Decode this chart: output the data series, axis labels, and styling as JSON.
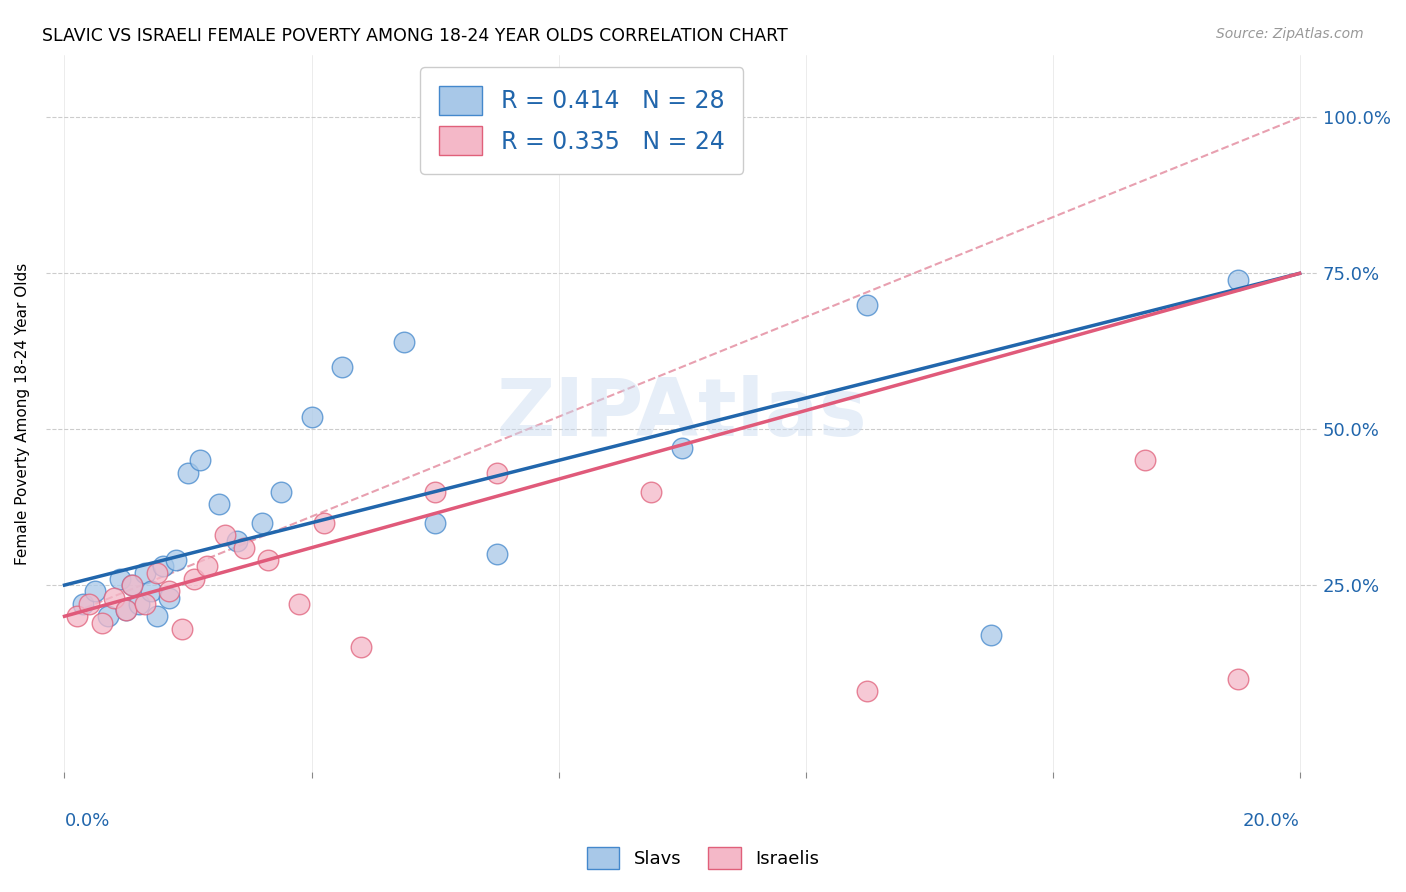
{
  "title": "SLAVIC VS ISRAELI FEMALE POVERTY AMONG 18-24 YEAR OLDS CORRELATION CHART",
  "source": "Source: ZipAtlas.com",
  "ylabel": "Female Poverty Among 18-24 Year Olds",
  "legend_text": [
    "R = 0.414   N = 28",
    "R = 0.335   N = 24"
  ],
  "slavs_color": "#a8c8e8",
  "israelis_color": "#f4b8c8",
  "slavs_edge_color": "#4488cc",
  "israelis_edge_color": "#e0607a",
  "slavs_line_color": "#2166ac",
  "israelis_line_color": "#e05a7a",
  "dash_line_color": "#e8a0b0",
  "slavs_scatter_x": [
    0.3,
    0.5,
    0.7,
    0.9,
    1.0,
    1.1,
    1.2,
    1.3,
    1.4,
    1.5,
    1.6,
    1.7,
    1.8,
    2.0,
    2.2,
    2.5,
    2.8,
    3.2,
    3.5,
    4.0,
    4.5,
    5.5,
    6.0,
    7.0,
    10.0,
    13.0,
    15.0,
    19.0
  ],
  "slavs_scatter_y": [
    22,
    24,
    20,
    26,
    21,
    25,
    22,
    27,
    24,
    20,
    28,
    23,
    29,
    43,
    45,
    38,
    32,
    35,
    40,
    52,
    60,
    64,
    35,
    30,
    47,
    70,
    17,
    74
  ],
  "israelis_scatter_x": [
    0.2,
    0.4,
    0.6,
    0.8,
    1.0,
    1.1,
    1.3,
    1.5,
    1.7,
    1.9,
    2.1,
    2.3,
    2.6,
    2.9,
    3.3,
    3.8,
    4.2,
    4.8,
    6.0,
    7.0,
    9.5,
    13.0,
    17.5,
    19.0
  ],
  "israelis_scatter_y": [
    20,
    22,
    19,
    23,
    21,
    25,
    22,
    27,
    24,
    18,
    26,
    28,
    33,
    31,
    29,
    22,
    35,
    15,
    40,
    43,
    40,
    8,
    45,
    10
  ],
  "slavs_trend_x": [
    0,
    20
  ],
  "slavs_trend_y": [
    25,
    75
  ],
  "israelis_trend_x": [
    0,
    20
  ],
  "israelis_trend_y": [
    20,
    75
  ],
  "dash_line_x": [
    0,
    20
  ],
  "dash_line_y": [
    20,
    100
  ],
  "xlim": [
    -0.3,
    20.3
  ],
  "ylim": [
    -5,
    110
  ],
  "ytick_vals": [
    25,
    50,
    75,
    100
  ],
  "ytick_labels": [
    "25.0%",
    "50.0%",
    "75.0%",
    "100.0%"
  ],
  "xtick_vals": [
    0,
    4,
    8,
    12,
    16,
    20
  ],
  "watermark": "ZIPAtlas",
  "background_color": "#ffffff",
  "grid_color": "#cccccc"
}
